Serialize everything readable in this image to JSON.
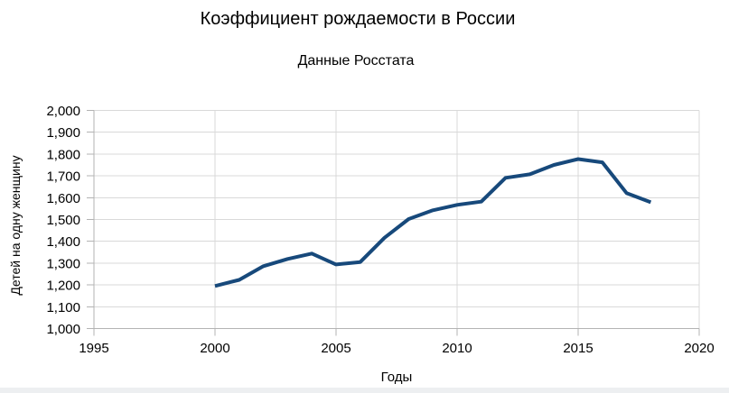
{
  "page": {
    "background": "#ffffff",
    "bottom_strip_color": "#edeff1"
  },
  "chart": {
    "title": "Коэффициент рождаемости в России",
    "subtitle": "Данные Росстата",
    "x_axis_title": "Годы",
    "y_axis_title": "Детей на одну женщину",
    "colors": {
      "series_line": "#17497b",
      "gridline": "#d9d9d9",
      "axis_line": "#b3b3b3",
      "text": "#000000"
    }
  },
  "chart_data": {
    "type": "line",
    "title": "Коэффициент рождаемости в России",
    "subtitle": "Данные Росстата",
    "xlabel": "Годы",
    "ylabel": "Детей на одну женщину",
    "xlim": [
      1995,
      2020
    ],
    "ylim": [
      1.0,
      2.0
    ],
    "grid": true,
    "legend": "none",
    "x_ticks": [
      1995,
      2000,
      2005,
      2010,
      2015,
      2020
    ],
    "x_tick_labels": [
      "1995",
      "2000",
      "2005",
      "2010",
      "2015",
      "2020"
    ],
    "y_ticks": [
      1.0,
      1.1,
      1.2,
      1.3,
      1.4,
      1.5,
      1.6,
      1.7,
      1.8,
      1.9,
      2.0
    ],
    "y_tick_labels": [
      "1,000",
      "1,100",
      "1,200",
      "1,300",
      "1,400",
      "1,500",
      "1,600",
      "1,700",
      "1,800",
      "1,900",
      "2,000"
    ],
    "series": [
      {
        "color": "#17497b",
        "x": [
          2000,
          2001,
          2002,
          2003,
          2004,
          2005,
          2006,
          2007,
          2008,
          2009,
          2010,
          2011,
          2012,
          2013,
          2014,
          2015,
          2016,
          2017,
          2018
        ],
        "y": [
          1.195,
          1.223,
          1.286,
          1.319,
          1.344,
          1.294,
          1.305,
          1.416,
          1.502,
          1.542,
          1.567,
          1.582,
          1.691,
          1.707,
          1.75,
          1.777,
          1.762,
          1.621,
          1.579
        ]
      }
    ]
  }
}
